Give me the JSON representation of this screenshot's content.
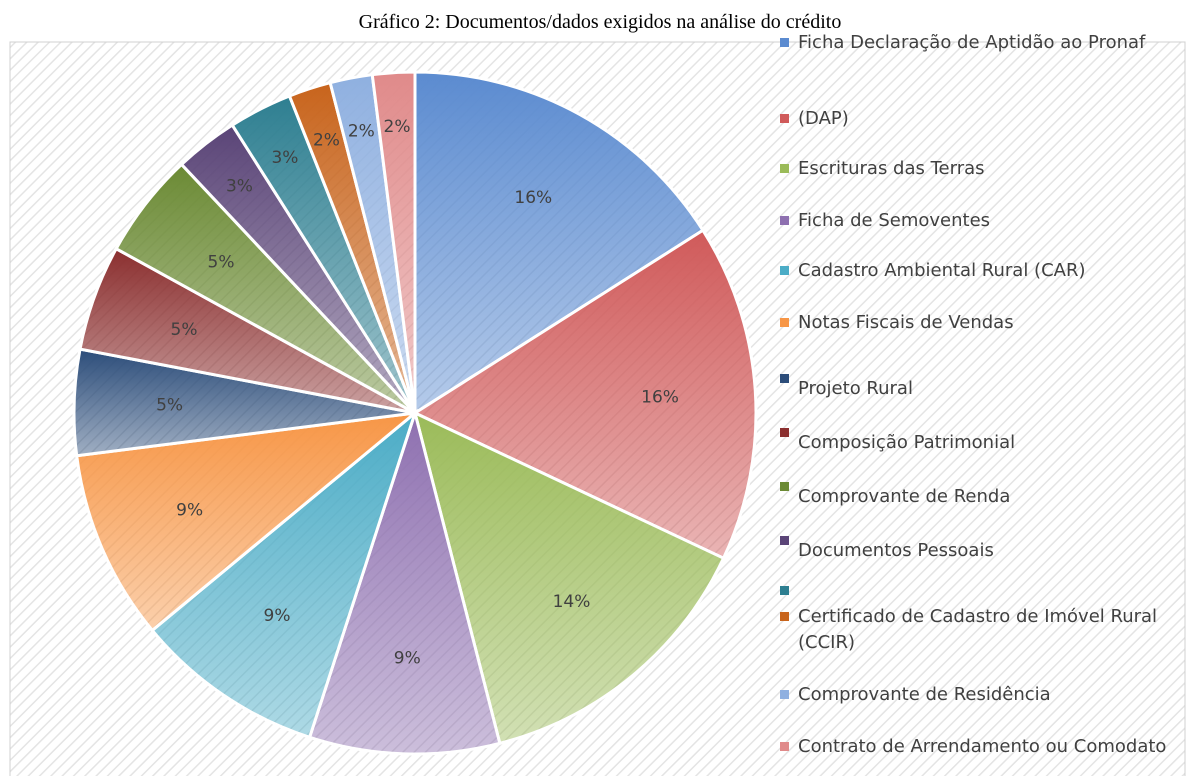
{
  "chart_data": {
    "type": "pie",
    "title": "Gráfico 2: Documentos/dados exigidos na análise do crédito",
    "categories": [
      "Ficha Declaração de Aptidão ao Pronaf",
      "(DAP)",
      "Escrituras das Terras",
      "Ficha de Semoventes",
      "Cadastro Ambiental Rural (CAR)",
      "Notas Fiscais de Vendas",
      "Projeto Rural",
      "Composição Patrimonial",
      "Comprovante de Renda",
      "Documentos Pessoais",
      null,
      "Certificado de Cadastro de Imóvel Rural (CCIR)",
      "Comprovante de Residência",
      "Contrato de Arrendamento ou Comodato"
    ],
    "values": [
      16,
      16,
      14,
      9,
      9,
      9,
      5,
      5,
      5,
      3,
      3,
      2,
      2,
      2
    ],
    "value_labels": [
      "16%",
      "16%",
      "14%",
      "9%",
      "9%",
      "9%",
      "5%",
      "5%",
      "5%",
      "3%",
      "3%",
      "2%",
      "2%",
      "2%"
    ],
    "colors": [
      "#5b8bd0",
      "#d05a5a",
      "#9bbb59",
      "#8e70b0",
      "#4bacc6",
      "#f79646",
      "#2c4d7a",
      "#8b2f2f",
      "#6b8a34",
      "#5a4477",
      "#2e7f91",
      "#c8641c",
      "#8fb0e0",
      "#e08a8a"
    ]
  }
}
